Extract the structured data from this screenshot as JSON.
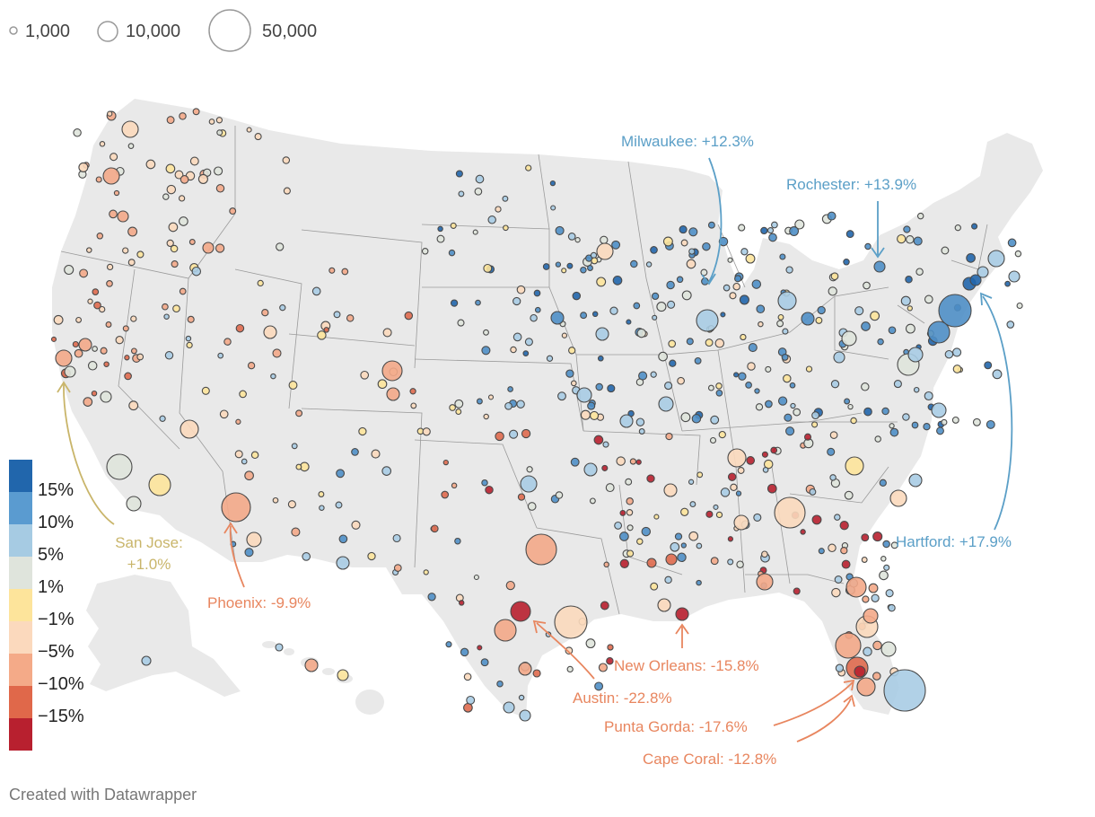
{
  "size_legend": {
    "items": [
      {
        "label": "1,000",
        "value": 1000
      },
      {
        "label": "10,000",
        "value": 10000
      },
      {
        "label": "50,000",
        "value": 50000
      }
    ]
  },
  "color_legend": {
    "labels": [
      "15%",
      "10%",
      "5%",
      "1%",
      "−1%",
      "−5%",
      "−10%",
      "−15%"
    ],
    "colors": [
      "#2166ac",
      "#5a9bd0",
      "#a6cbe3",
      "#dfe4dc",
      "#fde49b",
      "#fbd9bd",
      "#f4aa88",
      "#e0684a",
      "#b8202f"
    ]
  },
  "callouts": {
    "milwaukee": {
      "city": "Milwaukee",
      "label": "Milwaukee: +12.3%",
      "change": 12.3,
      "color": "#5b9fc7"
    },
    "rochester": {
      "city": "Rochester",
      "label": "Rochester: +13.9%",
      "change": 13.9,
      "color": "#5b9fc7"
    },
    "hartford": {
      "city": "Hartford",
      "label": "Hartford: +17.9%",
      "change": 17.9,
      "color": "#5b9fc7"
    },
    "san_jose_name": "San Jose:",
    "san_jose_value": "+1.0%",
    "san_jose": {
      "city": "San Jose",
      "change": 1.0,
      "color": "#c9b56a"
    },
    "phoenix": {
      "city": "Phoenix",
      "label": "Phoenix: -9.9%",
      "change": -9.9,
      "color": "#e8865f"
    },
    "new_orleans": {
      "city": "New Orleans",
      "label": "New Orleans: -15.8%",
      "change": -15.8,
      "color": "#e8865f"
    },
    "austin": {
      "city": "Austin",
      "label": "Austin: -22.8%",
      "change": -22.8,
      "color": "#e8865f"
    },
    "punta_gorda": {
      "city": "Punta Gorda",
      "label": "Punta Gorda: -17.6%",
      "change": -17.6,
      "color": "#e8865f"
    },
    "cape_coral": {
      "city": "Cape Coral",
      "label": "Cape Coral: -12.8%",
      "change": -12.8,
      "color": "#e8865f"
    }
  },
  "footer": "Created with Datawrapper",
  "colors": {
    "land": "#e9e9e9",
    "borders": "#9a9a9a",
    "bubble_stroke": "#555555"
  }
}
